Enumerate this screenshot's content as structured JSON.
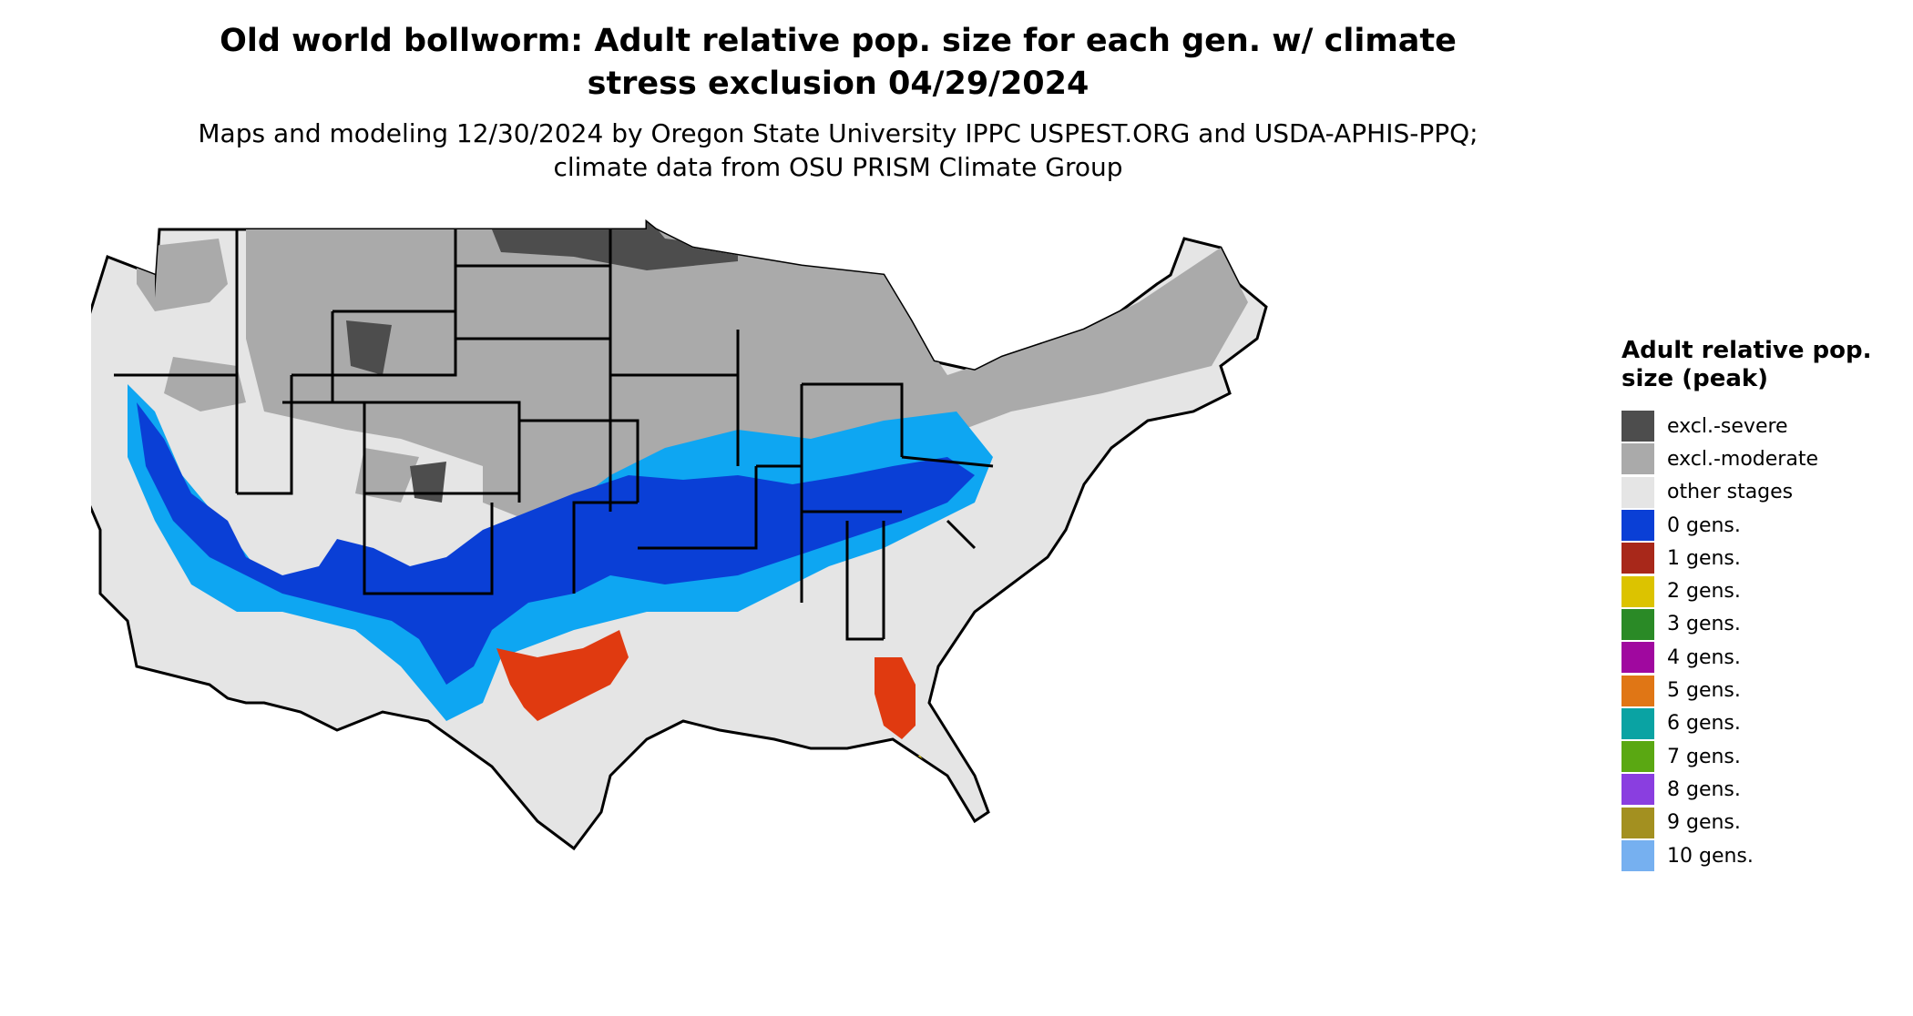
{
  "title": "Old world bollworm: Adult relative pop. size for each gen. w/ climate stress exclusion 04/29/2024",
  "subtitle": "Maps and modeling 12/30/2024 by Oregon State University IPPC USPEST.ORG and USDA-APHIS-PPQ; climate data from OSU PRISM Climate Group",
  "legend": {
    "title": "Adult relative pop. size (peak)",
    "items": [
      {
        "label": "excl.-severe",
        "color": "#4d4d4d"
      },
      {
        "label": "excl.-moderate",
        "color": "#aaaaaa"
      },
      {
        "label": "other stages",
        "color": "#e5e5e5"
      },
      {
        "label": "0 gens.",
        "color": "#0a3fd6"
      },
      {
        "label": "1 gens.",
        "color": "#a8281a"
      },
      {
        "label": "2 gens.",
        "color": "#dcc300"
      },
      {
        "label": "3 gens.",
        "color": "#2a8a26"
      },
      {
        "label": "4 gens.",
        "color": "#a0089f"
      },
      {
        "label": "5 gens.",
        "color": "#e07615"
      },
      {
        "label": "6 gens.",
        "color": "#0aa3a3"
      },
      {
        "label": "7 gens.",
        "color": "#5aa812"
      },
      {
        "label": "8 gens.",
        "color": "#8a3ee0"
      },
      {
        "label": "9 gens.",
        "color": "#a39020"
      },
      {
        "label": "10 gens.",
        "color": "#76b0f0"
      }
    ]
  },
  "map_colors": {
    "background_land": "#e5e5e5",
    "excl_moderate": "#aaaaaa",
    "excl_severe": "#4d4d4d",
    "zero_gens_dark": "#0a3fd6",
    "zero_gens_light": "#0ea6f2",
    "one_gen": "#e03a10",
    "two_gens": "#dcc300",
    "borders": "#000000"
  }
}
